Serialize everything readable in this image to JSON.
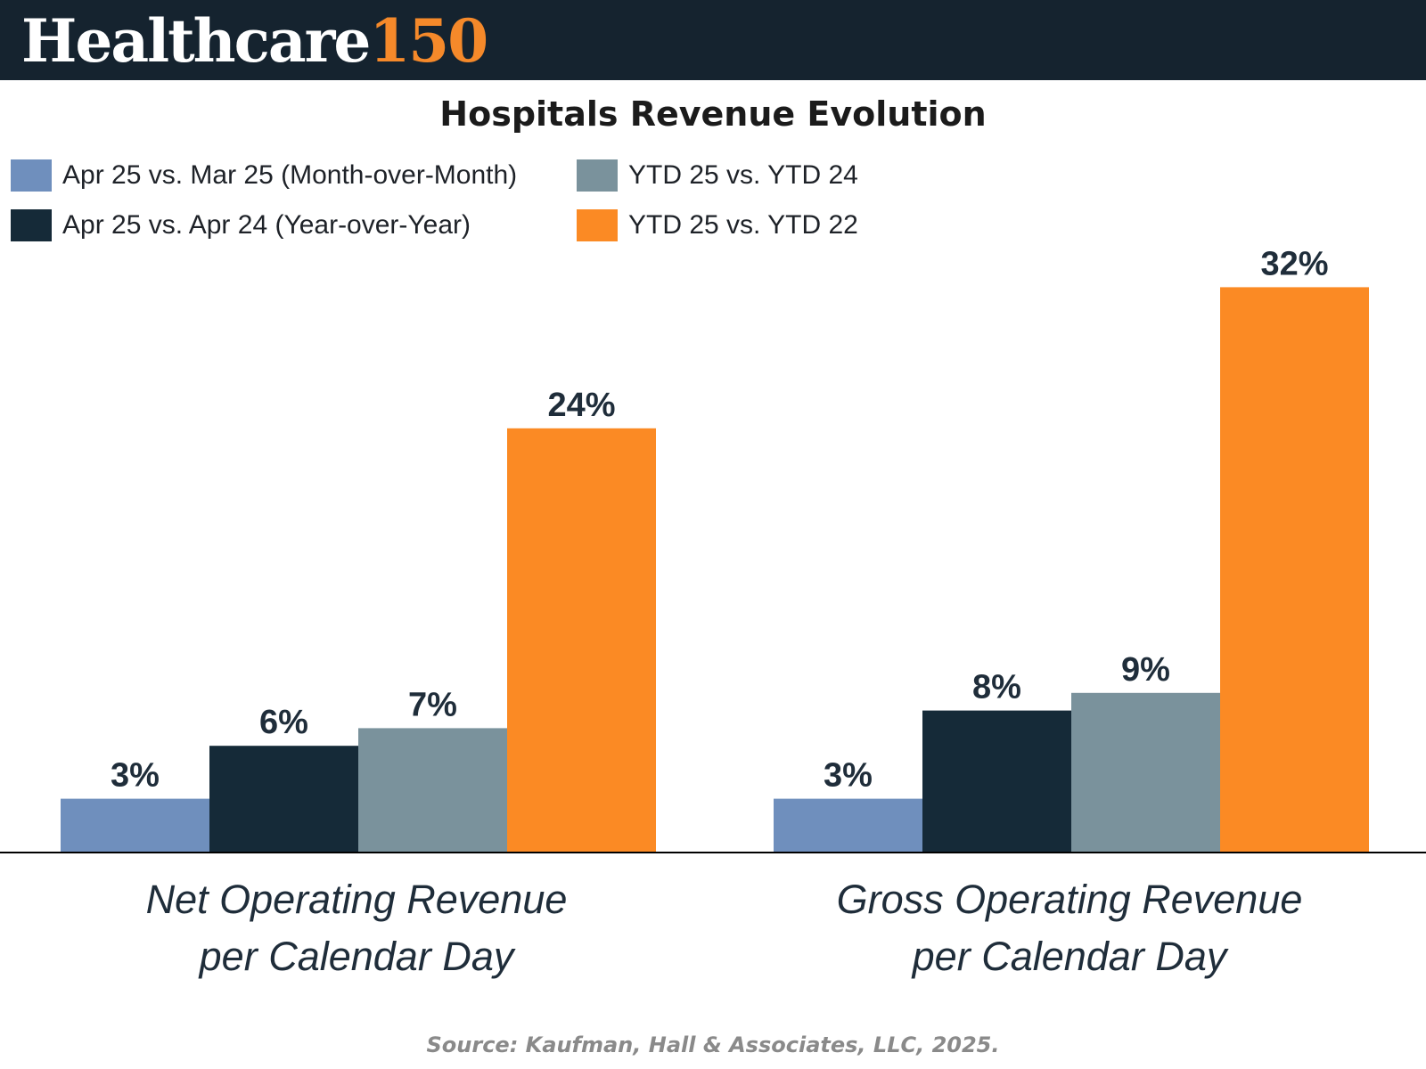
{
  "header": {
    "brand_main": "Healthcare",
    "brand_accent": "150",
    "background": "#15232f",
    "accent_color": "#f5892a"
  },
  "chart_data": {
    "type": "bar",
    "title": "Hospitals Revenue Evolution",
    "categories": [
      [
        "Net Operating Revenue",
        "per Calendar Day"
      ],
      [
        "Gross Operating Revenue",
        "per Calendar Day"
      ]
    ],
    "series": [
      {
        "name": "Apr 25 vs. Mar 25 (Month-over-Month)",
        "values": [
          3,
          3
        ],
        "color": "#6f8fbd"
      },
      {
        "name": "Apr 25 vs. Apr 24 (Year-over-Year)",
        "values": [
          6,
          8
        ],
        "color": "#152a38"
      },
      {
        "name": "YTD 25 vs. YTD 24",
        "values": [
          7,
          9
        ],
        "color": "#7a929c"
      },
      {
        "name": "YTD 25 vs. YTD 22",
        "values": [
          24,
          32
        ],
        "color": "#fb8a24"
      }
    ],
    "value_suffix": "%",
    "xlabel": "",
    "ylabel": "",
    "grid": false,
    "legend_position": "top-left"
  },
  "source": "Source: Kaufman, Hall & Associates, LLC, 2025."
}
